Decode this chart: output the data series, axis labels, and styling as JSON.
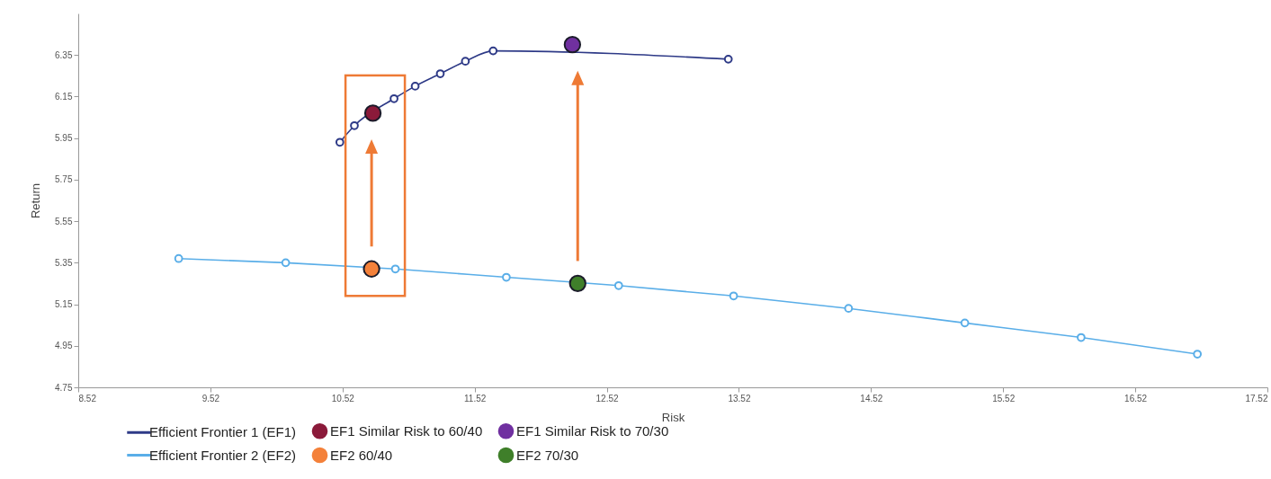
{
  "chart_data": {
    "type": "line",
    "xlabel": "Risk",
    "ylabel": "Return",
    "xlim": [
      8.52,
      17.52
    ],
    "xticks": [
      8.52,
      9.52,
      10.52,
      11.52,
      12.52,
      13.52,
      14.52,
      15.52,
      16.52,
      17.52
    ],
    "ylim": [
      4.75,
      6.55
    ],
    "yticks": [
      4.75,
      4.95,
      5.15,
      5.35,
      5.55,
      5.75,
      5.95,
      6.15,
      6.35
    ],
    "legend": "bottom",
    "marker": "circle",
    "line_style": "solid",
    "series": [
      {
        "name": "Efficient Frontier 1 (EF1)",
        "color": "#2e3a87",
        "x": [
          10.5,
          10.61,
          10.91,
          11.07,
          11.26,
          11.45,
          11.66,
          13.44
        ],
        "values": [
          5.93,
          6.01,
          6.14,
          6.2,
          6.26,
          6.32,
          6.37,
          6.33
        ]
      },
      {
        "name": "EF1 Similar Risk to 60/40",
        "type": "scatter",
        "color": "#8b1a3a",
        "x": [
          10.75
        ],
        "values": [
          6.07
        ]
      },
      {
        "name": "EF1 Similar Risk to 70/30",
        "type": "scatter",
        "color": "#7030a0",
        "x": [
          12.26
        ],
        "values": [
          6.4
        ]
      },
      {
        "name": "Efficient Frontier 2 (EF2)",
        "color": "#5aaee8",
        "x": [
          9.28,
          10.09,
          10.92,
          11.76,
          12.61,
          13.48,
          14.35,
          15.23,
          16.11,
          16.99
        ],
        "values": [
          5.37,
          5.35,
          5.32,
          5.28,
          5.24,
          5.19,
          5.13,
          5.06,
          4.99,
          4.91
        ]
      },
      {
        "name": "EF2 60/40",
        "type": "scatter",
        "color": "#f4813a",
        "x": [
          10.74
        ],
        "values": [
          5.32
        ]
      },
      {
        "name": "EF2 70/30",
        "type": "scatter",
        "color": "#3f7f2a",
        "x": [
          12.3
        ],
        "values": [
          5.25
        ]
      }
    ]
  }
}
